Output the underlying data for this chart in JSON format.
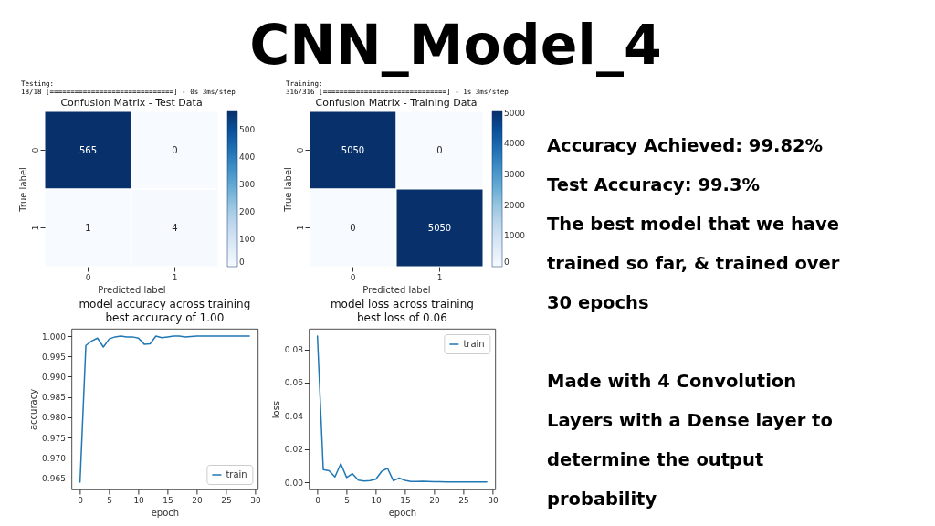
{
  "chart_data": [
    {
      "type": "other",
      "title": "CNN_Model_4"
    },
    {
      "type": "heatmap",
      "title": "Confusion Matrix - Test Data",
      "xlabel": "Predicted label",
      "ylabel": "True label",
      "categories": [
        "0",
        "1"
      ],
      "y_categories": [
        "0",
        "1"
      ],
      "cells": [
        [
          565,
          0
        ],
        [
          1,
          4
        ]
      ],
      "clim": [
        0,
        565
      ],
      "cticks": [
        0,
        100,
        200,
        300,
        400,
        500
      ],
      "data_labels": true,
      "annotations": [
        "Testing:",
        "18/18 [==============================] - 0s 3ms/step"
      ]
    },
    {
      "type": "heatmap",
      "title": "Confusion Matrix - Training Data",
      "xlabel": "Predicted label",
      "ylabel": "True label",
      "categories": [
        "0",
        "1"
      ],
      "y_categories": [
        "0",
        "1"
      ],
      "cells": [
        [
          5050,
          0
        ],
        [
          0,
          5050
        ]
      ],
      "clim": [
        0,
        5050
      ],
      "cticks": [
        0,
        1000,
        2000,
        3000,
        4000,
        5000
      ],
      "data_labels": true,
      "annotations": [
        "Training:",
        "316/316 [==============================] - 1s 3ms/step"
      ]
    },
    {
      "type": "other",
      "annotations": [
        "Accuracy Achieved: 99.82%\nTest Accuracy: 99.3%\nThe best model that we have\ntrained so far, & trained over\n30 epochs",
        "Made with 4 Convolution\nLayers with a Dense layer to\ndetermine the output\nprobability"
      ]
    },
    {
      "type": "line",
      "title": "model accuracy across training\nbest accuracy of 1.00",
      "xlabel": "epoch",
      "ylabel": "accuracy",
      "x": [
        0,
        1,
        2,
        3,
        4,
        5,
        6,
        7,
        8,
        9,
        10,
        11,
        12,
        13,
        14,
        15,
        16,
        17,
        18,
        19,
        20,
        21,
        22,
        23,
        24,
        25,
        26,
        27,
        28,
        29
      ],
      "series": [
        {
          "name": "train",
          "color": "#1f77b4",
          "values": [
            0.964,
            0.9977,
            0.9988,
            0.9995,
            0.9973,
            0.9993,
            0.9998,
            1.0,
            0.9998,
            0.9998,
            0.9995,
            0.998,
            0.9981,
            1.0,
            0.9996,
            0.9998,
            1.0,
            1.0,
            0.9998,
            0.9999,
            1.0,
            1.0,
            1.0,
            1.0,
            1.0,
            1.0,
            1.0,
            1.0,
            1.0,
            1.0
          ]
        }
      ],
      "xlim": [
        -1.45,
        30.45
      ],
      "xticks": [
        0,
        5,
        10,
        15,
        20,
        25,
        30
      ],
      "ylim": [
        0.9622,
        1.0018
      ],
      "yticks": [
        0.965,
        {
          "value": 0.97,
          "label": "0.970"
        },
        0.975,
        {
          "value": 0.98,
          "label": "0.980"
        },
        0.985,
        {
          "value": 0.99,
          "label": "0.990"
        },
        0.995,
        {
          "value": 1.0,
          "label": "1.000"
        }
      ],
      "legend": "bottom right",
      "grid": false,
      "marker": "none",
      "line_style": "solid"
    },
    {
      "type": "line",
      "title": "model loss across training\nbest loss of 0.06",
      "xlabel": "epoch",
      "ylabel": "loss",
      "x": [
        0,
        1,
        2,
        3,
        4,
        5,
        6,
        7,
        8,
        9,
        10,
        11,
        12,
        13,
        14,
        15,
        16,
        17,
        18,
        19,
        20,
        21,
        22,
        23,
        24,
        25,
        26,
        27,
        28,
        29
      ],
      "series": [
        {
          "name": "train",
          "color": "#1f77b4",
          "values": [
            0.088,
            0.0076,
            0.0069,
            0.0032,
            0.0111,
            0.0028,
            0.0051,
            0.0012,
            0.0007,
            0.001,
            0.0018,
            0.0065,
            0.0084,
            0.0009,
            0.0025,
            0.0011,
            0.0004,
            0.0004,
            0.0005,
            0.0004,
            0.0003,
            0.0003,
            0.0002,
            0.0002,
            0.0002,
            0.0002,
            0.0002,
            0.0002,
            0.0002,
            0.0002
          ]
        }
      ],
      "xlim": [
        -1.45,
        30.45
      ],
      "xticks": [
        0,
        5,
        10,
        15,
        20,
        25,
        30
      ],
      "ylim": [
        -0.0044,
        0.0924
      ],
      "yticks": [
        {
          "value": 0,
          "label": "0.00"
        },
        0.02,
        0.04,
        0.06,
        0.08
      ],
      "legend": "top right",
      "grid": false,
      "marker": "none",
      "line_style": "solid"
    }
  ]
}
